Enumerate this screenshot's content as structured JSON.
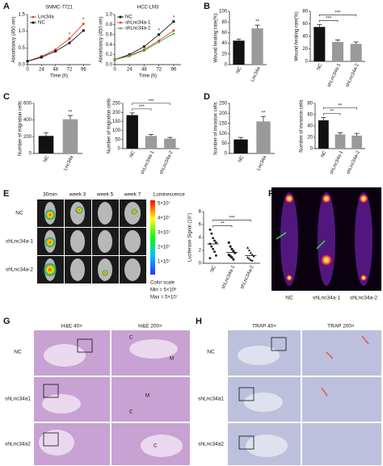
{
  "panel_labels": [
    "A",
    "B",
    "C",
    "D",
    "E",
    "F",
    "G",
    "H"
  ],
  "chart_data": [
    {
      "type": "line",
      "title": "SMMC-7721",
      "xlabel": "Time (h)",
      "ylabel": "Absorbancy (450 nm)",
      "x": [
        0,
        24,
        48,
        72,
        96
      ],
      "xlim": [
        0,
        108
      ],
      "xticks": [
        0,
        24,
        48,
        72,
        96
      ],
      "ylim": [
        0,
        1.5
      ],
      "yticks": [
        {
          "value": 0,
          "label": "0.0"
        },
        0.5,
        {
          "value": 1,
          "label": "1.0"
        },
        1.5
      ],
      "series": [
        {
          "name": "Lnc34a",
          "color": "#e8402e",
          "marker": "circle",
          "values": [
            0.1,
            0.25,
            0.45,
            0.78,
            1.22
          ]
        },
        {
          "name": "NC",
          "color": "#111111",
          "marker": "square",
          "values": [
            0.1,
            0.22,
            0.4,
            0.65,
            1.02
          ]
        }
      ],
      "significance": [
        "*",
        "*"
      ]
    },
    {
      "type": "line",
      "title": "HCC-LM3",
      "xlabel": "Time (h)",
      "ylabel": "Absorbancy (450 nm)",
      "x": [
        0,
        24,
        48,
        72,
        96
      ],
      "xlim": [
        0,
        108
      ],
      "xticks": [
        0,
        24,
        48,
        72,
        96
      ],
      "ylim": [
        0,
        1.0
      ],
      "yticks": [
        {
          "value": 0,
          "label": "0.0"
        },
        0.2,
        0.4,
        0.6,
        0.8,
        {
          "value": 1,
          "label": "1.0"
        }
      ],
      "series": [
        {
          "name": "NC",
          "color": "#111111",
          "marker": "square",
          "values": [
            0.1,
            0.2,
            0.36,
            0.6,
            0.86
          ]
        },
        {
          "name": "shLnc34a-1",
          "color": "#e8402e",
          "marker": "circle",
          "values": [
            0.1,
            0.18,
            0.3,
            0.48,
            0.68
          ]
        },
        {
          "name": "shLnc34a-2",
          "color": "#3aa63a",
          "marker": "triangle",
          "values": [
            0.1,
            0.17,
            0.28,
            0.45,
            0.62
          ]
        }
      ],
      "significance": [
        "*",
        "*"
      ]
    },
    {
      "type": "bar",
      "ylabel": "Wound healing rate(%)",
      "categories": [
        "NC",
        "Lnc34a"
      ],
      "values": [
        45,
        68
      ],
      "errors": [
        3,
        6
      ],
      "colors": [
        "#111111",
        "#9a9a9a"
      ],
      "ylim": [
        0,
        100
      ],
      "yticks": [
        0,
        20,
        40,
        60,
        80,
        100
      ],
      "significance": [
        "**"
      ]
    },
    {
      "type": "bar",
      "ylabel": "Wound healing rate(%)",
      "categories": [
        "NC",
        "shLnc34a-1",
        "shLnc34a-2"
      ],
      "values": [
        55,
        31,
        28
      ],
      "errors": [
        4,
        3,
        3
      ],
      "colors": [
        "#111111",
        "#9a9a9a",
        "#9a9a9a"
      ],
      "ylim": [
        0,
        80
      ],
      "yticks": [
        0,
        20,
        40,
        60,
        80
      ],
      "significance": [
        "***",
        "***"
      ]
    },
    {
      "type": "bar",
      "ylabel": "Number of migration cells",
      "categories": [
        "NC",
        "Lnc34a"
      ],
      "values": [
        210,
        410
      ],
      "errors": [
        40,
        45
      ],
      "colors": [
        "#111111",
        "#9a9a9a"
      ],
      "ylim": [
        0,
        600
      ],
      "yticks": [
        0,
        200,
        400,
        600
      ],
      "significance": [
        "**"
      ]
    },
    {
      "type": "bar",
      "ylabel": "Number of migration cells",
      "categories": [
        "NC",
        "shLnc34a-1",
        "shLnc34a-2"
      ],
      "values": [
        185,
        70,
        55
      ],
      "errors": [
        12,
        8,
        7
      ],
      "colors": [
        "#111111",
        "#9a9a9a",
        "#9a9a9a"
      ],
      "ylim": [
        0,
        250
      ],
      "yticks": [
        0,
        50,
        100,
        150,
        200,
        250
      ],
      "significance": [
        "***",
        "***"
      ]
    },
    {
      "type": "bar",
      "ylabel": "Number of invasion cells",
      "categories": [
        "NC",
        "Lnc34a"
      ],
      "values": [
        70,
        160
      ],
      "errors": [
        10,
        25
      ],
      "colors": [
        "#111111",
        "#9a9a9a"
      ],
      "ylim": [
        0,
        250
      ],
      "yticks": [
        0,
        50,
        100,
        150,
        200,
        250
      ],
      "significance": [
        "**"
      ]
    },
    {
      "type": "bar",
      "ylabel": "Number of invasion cells",
      "categories": [
        "NC",
        "shLnc34a-1",
        "shLnc34a-2"
      ],
      "values": [
        50,
        25,
        23
      ],
      "errors": [
        5,
        3,
        4
      ],
      "colors": [
        "#111111",
        "#9a9a9a",
        "#9a9a9a"
      ],
      "ylim": [
        0,
        80
      ],
      "yticks": [
        0,
        20,
        40,
        60,
        80
      ],
      "significance": [
        "**",
        "**"
      ]
    },
    {
      "type": "strip",
      "ylabel": "Luciferase Signal (10⁷)",
      "categories": [
        "NC",
        "shLnc34a-1",
        "shLnc34a-2"
      ],
      "markers": [
        "circle",
        "square",
        "triangle"
      ],
      "color": "#111111",
      "values": [
        [
          5.2,
          4.6,
          3.9,
          3.5,
          3.2,
          3.0,
          2.6,
          2.2,
          1.8,
          1.2,
          0.8
        ],
        [
          3.2,
          2.6,
          2.2,
          1.9,
          1.6,
          1.3,
          1.1,
          0.9,
          0.6
        ],
        [
          2.4,
          2.0,
          1.6,
          1.3,
          1.1,
          0.9,
          0.7,
          0.5,
          0.4
        ]
      ],
      "means": [
        3.0,
        1.7,
        1.2
      ],
      "ylim": [
        0,
        8
      ],
      "yticks": [
        0,
        2,
        4,
        6,
        8
      ],
      "significance": [
        "**",
        "***"
      ]
    }
  ],
  "imaging_e": {
    "columns": [
      "30min",
      "week 3",
      "week 5",
      "week 7"
    ],
    "rows": [
      "NC",
      "shLnc34a-1",
      "shLnc34a-2"
    ],
    "colorbar_title": "Luminescence",
    "colorbar_ticks": [
      "5×10⁷",
      "4×10⁷",
      "3×10⁷",
      "2×10⁷",
      "1×10⁷"
    ],
    "color_scale": "Color scale",
    "min": "Min = 5×10⁶",
    "max": "Max = 5×10⁷"
  },
  "imaging_f": {
    "columns": [
      "NC",
      "shLnc34a-1",
      "shLnc34a-2"
    ]
  },
  "histology_g": {
    "columns": [
      "H&E 40×",
      "H&E 200×"
    ],
    "rows": [
      "NC",
      "shLnc34a1",
      "shLnc34a2"
    ],
    "annotations": [
      "C",
      "M",
      "M",
      "C",
      "C"
    ]
  },
  "histology_h": {
    "columns": [
      "TRAP 40×",
      "TRAP 200×"
    ],
    "rows": [
      "NC",
      "shLnc34a1",
      "shLnc34a2"
    ]
  }
}
